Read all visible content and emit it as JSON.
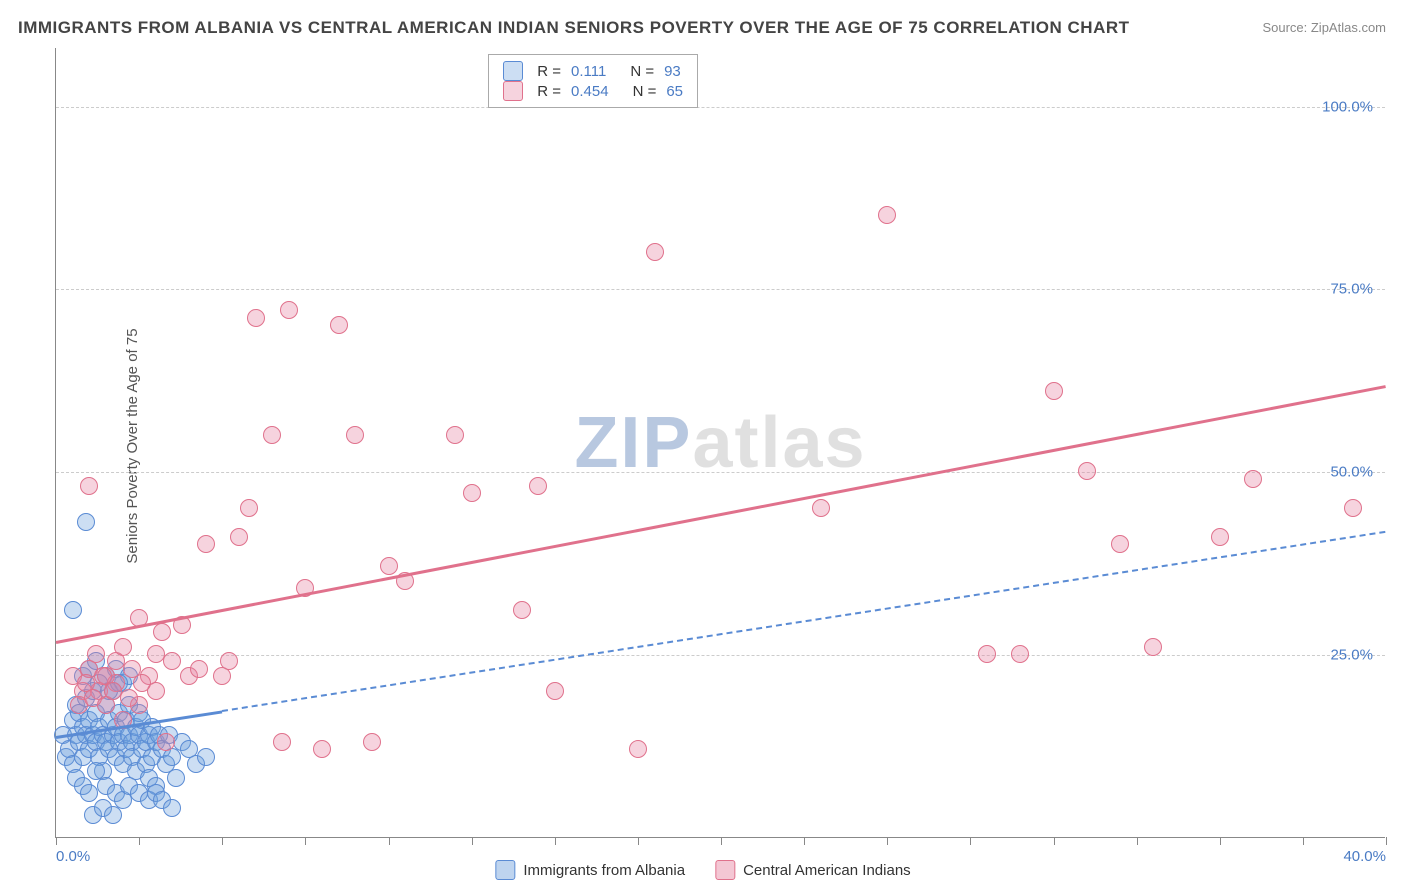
{
  "title": "IMMIGRANTS FROM ALBANIA VS CENTRAL AMERICAN INDIAN SENIORS POVERTY OVER THE AGE OF 75 CORRELATION CHART",
  "source": "Source: ZipAtlas.com",
  "ylabel": "Seniors Poverty Over the Age of 75",
  "watermark_zip": "ZIP",
  "watermark_atlas": "atlas",
  "chart": {
    "type": "scatter",
    "xlim": [
      0,
      40
    ],
    "ylim": [
      0,
      108
    ],
    "x_ticks": [
      0,
      10,
      20,
      30,
      40
    ],
    "x_tick_labels": [
      "0.0%",
      "",
      "",
      "",
      "40.0%"
    ],
    "x_minor_ticks": [
      0,
      2.5,
      5,
      7.5,
      10,
      12.5,
      15,
      17.5,
      20,
      22.5,
      25,
      27.5,
      30,
      32.5,
      35,
      37.5,
      40
    ],
    "y_ticks": [
      25,
      50,
      75,
      100
    ],
    "y_tick_labels": [
      "25.0%",
      "50.0%",
      "75.0%",
      "100.0%"
    ],
    "grid_color": "#cccccc",
    "background": "#ffffff",
    "marker_radius": 9,
    "marker_border_width": 1.5,
    "marker_fill_opacity": 0.35
  },
  "series": [
    {
      "name": "Immigrants from Albania",
      "r": "0.111",
      "n": "93",
      "color": "#5a8bd4",
      "fill": "rgba(110,160,220,0.35)",
      "regression": {
        "x1": 0,
        "y1": 14,
        "x2": 40,
        "y2": 42,
        "style": "dashed",
        "solid_until_x": 5
      },
      "points": [
        [
          0.2,
          14
        ],
        [
          0.3,
          11
        ],
        [
          0.4,
          12
        ],
        [
          0.5,
          10
        ],
        [
          0.5,
          16
        ],
        [
          0.6,
          14
        ],
        [
          0.6,
          18
        ],
        [
          0.7,
          13
        ],
        [
          0.7,
          17
        ],
        [
          0.8,
          15
        ],
        [
          0.8,
          11
        ],
        [
          0.9,
          14
        ],
        [
          0.9,
          19
        ],
        [
          1.0,
          12
        ],
        [
          1.0,
          16
        ],
        [
          1.1,
          14
        ],
        [
          1.1,
          20
        ],
        [
          1.2,
          13
        ],
        [
          1.2,
          17
        ],
        [
          1.3,
          15
        ],
        [
          1.3,
          11
        ],
        [
          1.4,
          14
        ],
        [
          1.4,
          9
        ],
        [
          1.5,
          13
        ],
        [
          1.5,
          18
        ],
        [
          1.6,
          12
        ],
        [
          1.6,
          16
        ],
        [
          1.7,
          14
        ],
        [
          1.7,
          20
        ],
        [
          1.8,
          11
        ],
        [
          1.8,
          15
        ],
        [
          1.9,
          13
        ],
        [
          1.9,
          17
        ],
        [
          2.0,
          14
        ],
        [
          2.0,
          10
        ],
        [
          2.1,
          16
        ],
        [
          2.1,
          12
        ],
        [
          2.2,
          14
        ],
        [
          2.2,
          18
        ],
        [
          2.3,
          13
        ],
        [
          2.3,
          11
        ],
        [
          2.4,
          15
        ],
        [
          2.4,
          9
        ],
        [
          2.5,
          14
        ],
        [
          2.5,
          17
        ],
        [
          2.6,
          12
        ],
        [
          2.6,
          16
        ],
        [
          2.7,
          13
        ],
        [
          2.7,
          10
        ],
        [
          2.8,
          14
        ],
        [
          2.8,
          8
        ],
        [
          2.9,
          15
        ],
        [
          2.9,
          11
        ],
        [
          3.0,
          13
        ],
        [
          3.0,
          7
        ],
        [
          3.1,
          14
        ],
        [
          3.2,
          12
        ],
        [
          3.3,
          10
        ],
        [
          3.4,
          14
        ],
        [
          3.5,
          11
        ],
        [
          3.6,
          8
        ],
        [
          3.8,
          13
        ],
        [
          4.0,
          12
        ],
        [
          4.2,
          10
        ],
        [
          4.5,
          11
        ],
        [
          0.8,
          22
        ],
        [
          1.0,
          23
        ],
        [
          1.2,
          24
        ],
        [
          1.5,
          22
        ],
        [
          1.8,
          23
        ],
        [
          2.0,
          21
        ],
        [
          2.2,
          22
        ],
        [
          0.6,
          8
        ],
        [
          0.8,
          7
        ],
        [
          1.0,
          6
        ],
        [
          1.2,
          9
        ],
        [
          1.5,
          7
        ],
        [
          1.8,
          6
        ],
        [
          2.0,
          5
        ],
        [
          2.2,
          7
        ],
        [
          2.5,
          6
        ],
        [
          2.8,
          5
        ],
        [
          3.0,
          6
        ],
        [
          3.2,
          5
        ],
        [
          3.5,
          4
        ],
        [
          1.3,
          21
        ],
        [
          1.6,
          20
        ],
        [
          1.9,
          21
        ],
        [
          0.5,
          31
        ],
        [
          0.9,
          43
        ],
        [
          1.1,
          3
        ],
        [
          1.4,
          4
        ],
        [
          1.7,
          3
        ]
      ]
    },
    {
      "name": "Central American Indians",
      "r": "0.454",
      "n": "65",
      "color": "#e0718c",
      "fill": "rgba(230,130,160,0.35)",
      "regression": {
        "x1": 0,
        "y1": 27,
        "x2": 40,
        "y2": 62,
        "style": "solid"
      },
      "points": [
        [
          0.5,
          22
        ],
        [
          0.8,
          20
        ],
        [
          1.0,
          23
        ],
        [
          1.2,
          25
        ],
        [
          1.5,
          22
        ],
        [
          1.8,
          24
        ],
        [
          2.0,
          26
        ],
        [
          2.3,
          23
        ],
        [
          2.5,
          30
        ],
        [
          2.8,
          22
        ],
        [
          3.0,
          25
        ],
        [
          3.2,
          28
        ],
        [
          3.5,
          24
        ],
        [
          3.8,
          29
        ],
        [
          4.0,
          22
        ],
        [
          4.3,
          23
        ],
        [
          4.5,
          40
        ],
        [
          5.0,
          22
        ],
        [
          5.5,
          41
        ],
        [
          5.8,
          45
        ],
        [
          6.0,
          71
        ],
        [
          6.5,
          55
        ],
        [
          7.0,
          72
        ],
        [
          7.5,
          34
        ],
        [
          8.0,
          12
        ],
        [
          8.5,
          70
        ],
        [
          9.0,
          55
        ],
        [
          9.5,
          13
        ],
        [
          10.0,
          37
        ],
        [
          10.5,
          35
        ],
        [
          12.0,
          55
        ],
        [
          12.5,
          47
        ],
        [
          14.0,
          31
        ],
        [
          14.5,
          48
        ],
        [
          15.0,
          20
        ],
        [
          17.5,
          12
        ],
        [
          18.0,
          80
        ],
        [
          23.0,
          45
        ],
        [
          25.0,
          85
        ],
        [
          28.0,
          25
        ],
        [
          29.0,
          25
        ],
        [
          30.0,
          61
        ],
        [
          31.0,
          50
        ],
        [
          32.0,
          40
        ],
        [
          33.0,
          26
        ],
        [
          35.0,
          41
        ],
        [
          36.0,
          49
        ],
        [
          39.0,
          45
        ],
        [
          1.0,
          48
        ],
        [
          1.5,
          18
        ],
        [
          2.0,
          16
        ],
        [
          2.5,
          18
        ],
        [
          3.0,
          20
        ],
        [
          1.3,
          20
        ],
        [
          1.8,
          21
        ],
        [
          2.2,
          19
        ],
        [
          2.6,
          21
        ],
        [
          0.7,
          18
        ],
        [
          0.9,
          21
        ],
        [
          1.1,
          19
        ],
        [
          1.4,
          22
        ],
        [
          1.7,
          20
        ],
        [
          5.2,
          24
        ],
        [
          6.8,
          13
        ],
        [
          3.3,
          13
        ]
      ]
    }
  ],
  "legend_bottom": [
    {
      "label": "Immigrants from Albania",
      "color": "#5a8bd4",
      "fill": "rgba(110,160,220,0.45)"
    },
    {
      "label": "Central American Indians",
      "color": "#e0718c",
      "fill": "rgba(230,130,160,0.45)"
    }
  ]
}
